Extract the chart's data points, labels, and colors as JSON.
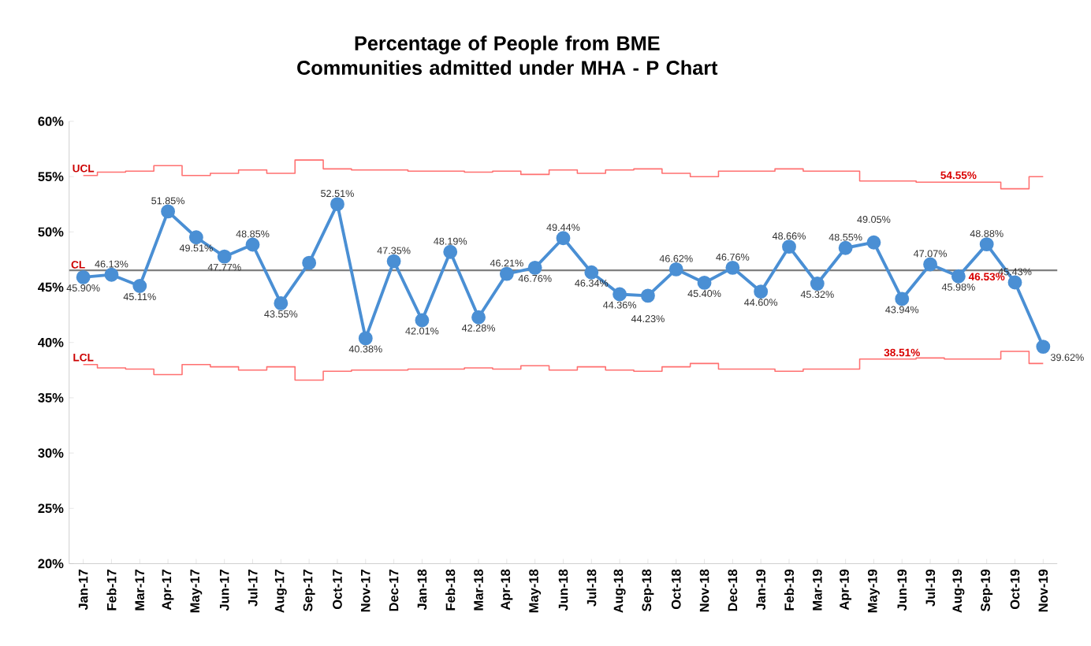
{
  "chart_data": {
    "type": "line",
    "title": "Percentage of People from BME Communities admitted under MHA - P Chart",
    "categories": [
      "Jan-17",
      "Feb-17",
      "Mar-17",
      "Apr-17",
      "May-17",
      "Jun-17",
      "Jul-17",
      "Aug-17",
      "Sep-17",
      "Oct-17",
      "Nov-17",
      "Dec-17",
      "Jan-18",
      "Feb-18",
      "Mar-18",
      "Apr-18",
      "May-18",
      "Jun-18",
      "Jul-18",
      "Aug-18",
      "Sep-18",
      "Oct-18",
      "Nov-18",
      "Dec-18",
      "Jan-19",
      "Feb-19",
      "Mar-19",
      "Apr-19",
      "May-19",
      "Jun-19",
      "Jul-19",
      "Aug-19",
      "Sep-19",
      "Oct-19",
      "Nov-19"
    ],
    "series": [
      {
        "color": "#4a8fd4",
        "marker": "circle",
        "values": [
          45.9,
          46.13,
          45.11,
          51.85,
          49.51,
          47.77,
          48.85,
          43.55,
          47.2,
          52.51,
          40.38,
          47.35,
          42.01,
          48.19,
          42.28,
          46.21,
          46.76,
          49.44,
          46.34,
          44.36,
          44.23,
          46.62,
          45.4,
          46.76,
          44.6,
          48.66,
          45.32,
          48.55,
          49.05,
          43.94,
          47.07,
          45.98,
          48.88,
          45.43,
          39.62
        ],
        "value_labels": [
          "45.90%",
          "46.13%",
          "45.11%",
          "51.85%",
          "49.51%",
          "47.77%",
          "48.85%",
          "43.55%",
          null,
          "52.51%",
          "40.38%",
          "47.35%",
          "42.01%",
          "48.19%",
          "42.28%",
          "46.21%",
          "46.76%",
          "49.44%",
          "46.34%",
          "44.36%",
          "44.23%",
          "46.62%",
          "45.40%",
          "46.76%",
          "44.60%",
          "48.66%",
          "45.32%",
          "48.55%",
          "49.05%",
          "43.94%",
          "47.07%",
          "45.98%",
          "48.88%",
          "45.43%",
          "39.62%"
        ]
      },
      {
        "name": "UCL",
        "color": "#ff7070",
        "type": "step",
        "values": [
          55.1,
          55.4,
          55.5,
          56.0,
          55.1,
          55.3,
          55.6,
          55.3,
          56.5,
          55.7,
          55.6,
          55.6,
          55.5,
          55.5,
          55.4,
          55.5,
          55.2,
          55.6,
          55.3,
          55.6,
          55.7,
          55.3,
          55.0,
          55.5,
          55.5,
          55.7,
          55.5,
          55.5,
          54.6,
          54.6,
          54.5,
          54.5,
          54.5,
          53.9,
          55.0
        ]
      },
      {
        "name": "LCL",
        "color": "#ff7070",
        "type": "step",
        "values": [
          38.0,
          37.7,
          37.6,
          37.1,
          38.0,
          37.8,
          37.5,
          37.8,
          36.6,
          37.4,
          37.5,
          37.5,
          37.6,
          37.6,
          37.7,
          37.6,
          37.9,
          37.5,
          37.8,
          37.5,
          37.4,
          37.8,
          38.1,
          37.6,
          37.6,
          37.4,
          37.6,
          37.6,
          38.5,
          38.5,
          38.6,
          38.5,
          38.5,
          39.2,
          38.1
        ]
      }
    ],
    "ref_lines": [
      {
        "axis": "y",
        "value": 46.53,
        "label": "CL",
        "color": "#808080"
      }
    ],
    "annotations": [
      {
        "text": "54.55%",
        "x": "Aug-19",
        "y": 54.55
      },
      {
        "text": "38.51%",
        "x": "Jun-19",
        "y": 38.51
      },
      {
        "text": "46.53%",
        "x": "Sep-19",
        "y": 46.53
      }
    ],
    "ylim": [
      20,
      60
    ],
    "yticks": [
      {
        "value": 20,
        "label": "20%"
      },
      {
        "value": 25,
        "label": "25%"
      },
      {
        "value": 30,
        "label": "30%"
      },
      {
        "value": 35,
        "label": "35%"
      },
      {
        "value": 40,
        "label": "40%"
      },
      {
        "value": 45,
        "label": "45%"
      },
      {
        "value": 50,
        "label": "50%"
      },
      {
        "value": 55,
        "label": "55%"
      },
      {
        "value": 60,
        "label": "60%"
      }
    ]
  }
}
